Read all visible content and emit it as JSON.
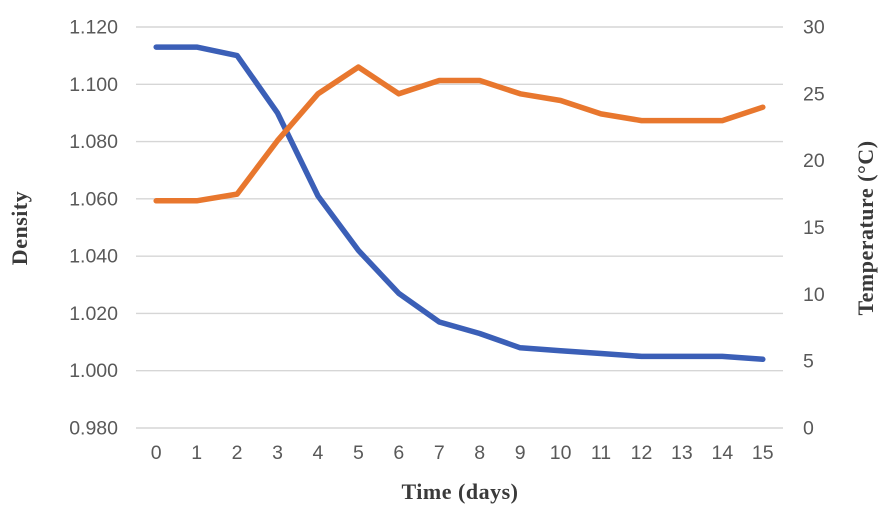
{
  "colors": {
    "background": "#ffffff",
    "gridline": "#d6d6d6",
    "tick_text": "#595959",
    "axis_title_text": "#3a3a3a",
    "density_line": "#3b5fb7",
    "temperature_line": "#e8772e"
  },
  "chart_data": {
    "type": "line",
    "title": "",
    "legend": "none",
    "grid": "horizontal",
    "categories": [
      "0",
      "1",
      "2",
      "3",
      "4",
      "5",
      "6",
      "7",
      "8",
      "9",
      "10",
      "11",
      "12",
      "13",
      "14",
      "15"
    ],
    "xlabel": "Time (days)",
    "series": [
      {
        "name": "Density",
        "axis": "left",
        "color": "#3b5fb7",
        "values": [
          1.113,
          1.113,
          1.11,
          1.09,
          1.061,
          1.042,
          1.027,
          1.017,
          1.013,
          1.008,
          1.007,
          1.006,
          1.005,
          1.005,
          1.005,
          1.004
        ]
      },
      {
        "name": "Temperature",
        "axis": "right",
        "color": "#e8772e",
        "values": [
          17,
          17,
          17.5,
          21.5,
          25,
          27,
          25,
          26,
          26,
          25,
          24.5,
          23.5,
          23,
          23,
          23,
          24
        ]
      }
    ],
    "left_axis": {
      "label": "Density",
      "min": 0.98,
      "max": 1.12,
      "tick_values": [
        1.12,
        1.1,
        1.08,
        1.06,
        1.04,
        1.02,
        1.0,
        0.98
      ],
      "tick_labels": [
        "1.120",
        "1.100",
        "1.080",
        "1.060",
        "1.040",
        "1.020",
        "1.000",
        "0.980"
      ]
    },
    "right_axis": {
      "label": "Temperature (°C)",
      "min": 0,
      "max": 30,
      "tick_values": [
        30,
        25,
        20,
        15,
        10,
        5,
        0
      ],
      "tick_labels": [
        "30",
        "25",
        "20",
        "15",
        "10",
        "5",
        "0"
      ]
    }
  }
}
